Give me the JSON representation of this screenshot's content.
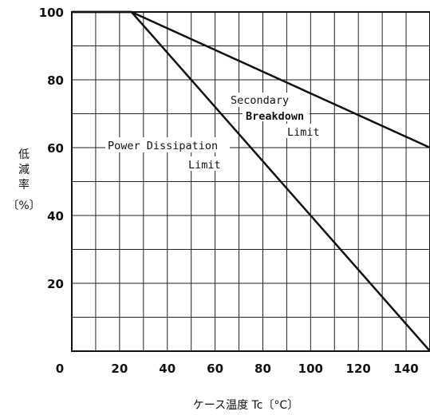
{
  "chart_data": {
    "type": "line",
    "title": "",
    "xlabel": "ケース温度 Tc〔°C〕",
    "ylabel": [
      "低",
      "減",
      "率",
      "〔%〕"
    ],
    "xlim": [
      0,
      150
    ],
    "ylim": [
      0,
      100
    ],
    "x_grid_step": 10,
    "y_grid_step": 10,
    "grid": true,
    "x_tick_labels": [
      {
        "value": 0,
        "label": "0"
      },
      {
        "value": 20,
        "label": "20"
      },
      {
        "value": 40,
        "label": "40"
      },
      {
        "value": 60,
        "label": "60"
      },
      {
        "value": 80,
        "label": "80"
      },
      {
        "value": 100,
        "label": "100"
      },
      {
        "value": 120,
        "label": "120"
      },
      {
        "value": 140,
        "label": "140"
      }
    ],
    "y_tick_labels": [
      {
        "value": 20,
        "label": "20"
      },
      {
        "value": 40,
        "label": "40"
      },
      {
        "value": 60,
        "label": "60"
      },
      {
        "value": 80,
        "label": "80"
      },
      {
        "value": 100,
        "label": "100"
      }
    ],
    "series": [
      {
        "name": "Secondary Breakdown Limit",
        "x": [
          0,
          25,
          150
        ],
        "y": [
          100,
          100,
          60
        ]
      },
      {
        "name": "Power Dissipation Limit",
        "x": [
          0,
          25,
          150
        ],
        "y": [
          100,
          100,
          0
        ]
      }
    ],
    "annotations": {
      "secondary": [
        "Secondary",
        "Breakdown",
        "Limit"
      ],
      "power": [
        "Power Dissipation",
        "Limit"
      ]
    }
  }
}
